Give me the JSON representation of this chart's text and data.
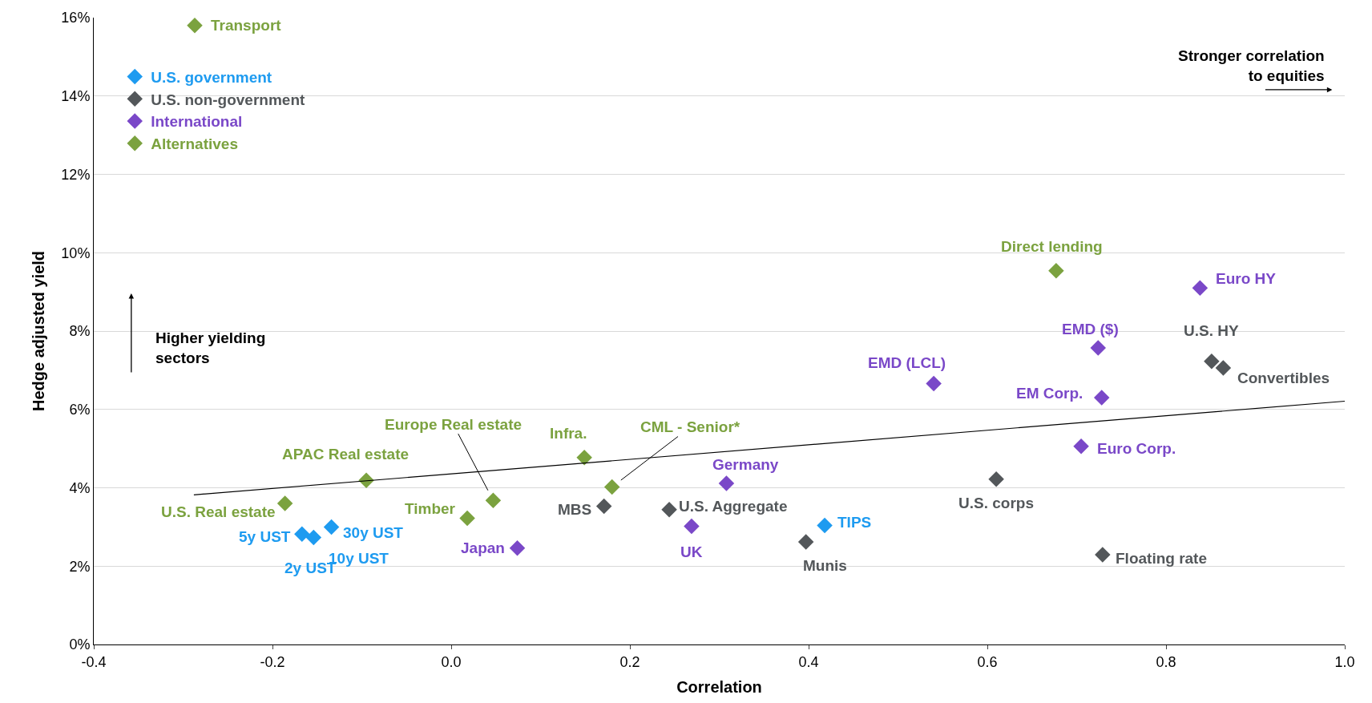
{
  "chart_data": {
    "type": "scatter",
    "xlabel": "Correlation",
    "ylabel": "Hedge adjusted yield",
    "xlim": [
      -0.4,
      1.0
    ],
    "ylim": [
      0,
      16
    ],
    "xticks": [
      -0.4,
      -0.2,
      {
        "value": 0,
        "label": "0.0"
      },
      0.2,
      0.4,
      0.6,
      0.8,
      {
        "value": 1,
        "label": "1.0"
      }
    ],
    "yticks": [
      {
        "value": 0,
        "label": "0%"
      },
      {
        "value": 2,
        "label": "2%"
      },
      {
        "value": 4,
        "label": "4%"
      },
      {
        "value": 6,
        "label": "6%"
      },
      {
        "value": 8,
        "label": "8%"
      },
      {
        "value": 10,
        "label": "10%"
      },
      {
        "value": 12,
        "label": "12%"
      },
      {
        "value": 14,
        "label": "14%"
      },
      {
        "value": 16,
        "label": "16%"
      }
    ],
    "grid": "y",
    "legend": "top left",
    "marker": "diamond",
    "series": [
      {
        "name": "U.S. government",
        "color": "#1e9bf0",
        "x": [
          -0.167,
          -0.154,
          -0.152,
          -0.134,
          0.418
        ],
        "values": [
          2.82,
          2.73,
          null,
          3.0,
          3.04
        ]
      },
      {
        "name": "U.S. non-government",
        "color": "#53575a",
        "x": [
          0.171,
          0.244,
          0.397,
          0.61,
          0.729,
          0.851,
          0.864
        ],
        "values": [
          3.53,
          3.44,
          2.62,
          4.22,
          2.29,
          7.23,
          7.06
        ]
      },
      {
        "name": "International",
        "color": "#7a48c8",
        "x": [
          0.074,
          0.269,
          0.308,
          0.54,
          0.724,
          0.728,
          0.705,
          0.838
        ],
        "values": [
          2.46,
          3.02,
          4.11,
          6.66,
          7.57,
          6.3,
          5.06,
          9.1
        ]
      },
      {
        "name": "Alternatives",
        "color": "#7ba23f",
        "x": [
          -0.287,
          0.677,
          0.149,
          0.18,
          0.047,
          0.018,
          -0.095,
          -0.186
        ],
        "values": [
          15.8,
          9.54,
          4.77,
          4.02,
          3.68,
          3.22,
          4.19,
          3.6
        ]
      },
      {
        "type": "line",
        "color": "#000000",
        "marker": "none",
        "x": [
          -0.288,
          1.0
        ],
        "values": [
          3.82,
          6.21
        ]
      }
    ],
    "annotations": [
      {
        "text": "Transport",
        "x": -0.287,
        "y": 15.8
      },
      {
        "text": "Direct lending",
        "x": 0.677,
        "y": 9.54
      },
      {
        "text": "Infra.",
        "x": 0.149,
        "y": 4.77
      },
      {
        "text": "CML - Senior*",
        "x": 0.18,
        "y": 4.02
      },
      {
        "text": "Europe Real estate",
        "x": 0.047,
        "y": 3.68
      },
      {
        "text": "Timber",
        "x": 0.018,
        "y": 3.22
      },
      {
        "text": "APAC Real estate",
        "x": -0.095,
        "y": 4.19
      },
      {
        "text": "U.S. Real estate",
        "x": -0.186,
        "y": 3.6
      },
      {
        "text": "5y UST",
        "x": -0.167,
        "y": 2.82
      },
      {
        "text": "2y UST",
        "x": -0.154,
        "y": 2.73
      },
      {
        "text": "10y UST",
        "x": -0.152,
        "y": 2.78
      },
      {
        "text": "30y UST",
        "x": -0.134,
        "y": 3.0
      },
      {
        "text": "TIPS",
        "x": 0.418,
        "y": 3.04
      },
      {
        "text": "MBS",
        "x": 0.171,
        "y": 3.53
      },
      {
        "text": "U.S. Aggregate",
        "x": 0.244,
        "y": 3.44
      },
      {
        "text": "Munis",
        "x": 0.397,
        "y": 2.62
      },
      {
        "text": "U.S. corps",
        "x": 0.61,
        "y": 4.22
      },
      {
        "text": "Floating rate",
        "x": 0.729,
        "y": 2.29
      },
      {
        "text": "U.S. HY",
        "x": 0.851,
        "y": 7.23
      },
      {
        "text": "Convertibles",
        "x": 0.864,
        "y": 7.06
      },
      {
        "text": "Japan",
        "x": 0.074,
        "y": 2.46
      },
      {
        "text": "UK",
        "x": 0.269,
        "y": 3.02
      },
      {
        "text": "Germany",
        "x": 0.308,
        "y": 4.11
      },
      {
        "text": "EMD (LCL)",
        "x": 0.54,
        "y": 6.66
      },
      {
        "text": "EMD ($)",
        "x": 0.724,
        "y": 7.57
      },
      {
        "text": "EM Corp.",
        "x": 0.728,
        "y": 6.3
      },
      {
        "text": "Euro Corp.",
        "x": 0.705,
        "y": 5.06
      },
      {
        "text": "Euro HY",
        "x": 0.838,
        "y": 9.1
      },
      "Stronger correlation\nto equities",
      "Higher yielding\nsectors"
    ]
  }
}
